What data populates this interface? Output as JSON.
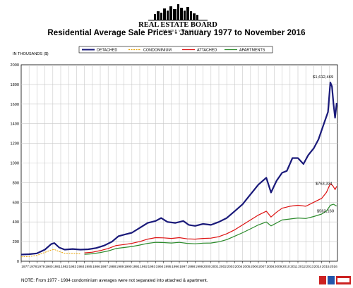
{
  "brand": {
    "name": "REAL ESTATE BOARD",
    "subtitle": "OF GREATER VANCOUVER"
  },
  "chart_data": {
    "type": "line",
    "title": "Residential Average Sale Prices  -  January 1977 to November 2016",
    "ylabel": "IN THOUSANDS ($)",
    "xlabel": "",
    "ylim": [
      0,
      2000
    ],
    "yticks": [
      0,
      200,
      400,
      600,
      800,
      1000,
      1200,
      1400,
      1600,
      1800,
      2000
    ],
    "xlim": [
      1977,
      2017
    ],
    "categories": [
      "1977",
      "1978",
      "1979",
      "1980",
      "1981",
      "1982",
      "1983",
      "1984",
      "1985",
      "1986",
      "1987",
      "1988",
      "1989",
      "1990",
      "1991",
      "1992",
      "1993",
      "1994",
      "1995",
      "1996",
      "1997",
      "1998",
      "1999",
      "2000",
      "2001",
      "2002",
      "2003",
      "2004",
      "2005",
      "2006",
      "2007",
      "2008",
      "2009",
      "2010",
      "2011",
      "2012",
      "2013",
      "2014",
      "2015",
      "2016"
    ],
    "grid": true,
    "legend_position": "top",
    "series": [
      {
        "name": "DETACHED",
        "color": "#1a1a7a",
        "style": "solid",
        "points": [
          [
            1977,
            68
          ],
          [
            1978,
            72
          ],
          [
            1979,
            80
          ],
          [
            1980,
            118
          ],
          [
            1980.8,
            175
          ],
          [
            1981.2,
            185
          ],
          [
            1981.8,
            140
          ],
          [
            1982.5,
            118
          ],
          [
            1983.5,
            125
          ],
          [
            1984.5,
            118
          ],
          [
            1985.5,
            122
          ],
          [
            1986.5,
            135
          ],
          [
            1987.5,
            160
          ],
          [
            1988.5,
            200
          ],
          [
            1989.3,
            255
          ],
          [
            1990,
            270
          ],
          [
            1991,
            290
          ],
          [
            1992,
            340
          ],
          [
            1993,
            390
          ],
          [
            1994,
            410
          ],
          [
            1994.7,
            440
          ],
          [
            1995.5,
            400
          ],
          [
            1996.5,
            390
          ],
          [
            1997.5,
            410
          ],
          [
            1998.2,
            370
          ],
          [
            1999,
            360
          ],
          [
            2000,
            380
          ],
          [
            2001,
            370
          ],
          [
            2002,
            400
          ],
          [
            2003,
            440
          ],
          [
            2004,
            510
          ],
          [
            2005,
            580
          ],
          [
            2006,
            680
          ],
          [
            2007,
            780
          ],
          [
            2008,
            850
          ],
          [
            2008.6,
            700
          ],
          [
            2009.3,
            820
          ],
          [
            2010,
            900
          ],
          [
            2010.6,
            920
          ],
          [
            2011.3,
            1050
          ],
          [
            2012,
            1050
          ],
          [
            2012.7,
            990
          ],
          [
            2013.3,
            1080
          ],
          [
            2014,
            1150
          ],
          [
            2014.6,
            1240
          ],
          [
            2015.2,
            1380
          ],
          [
            2015.8,
            1520
          ],
          [
            2016.1,
            1820
          ],
          [
            2016.3,
            1780
          ],
          [
            2016.5,
            1600
          ],
          [
            2016.7,
            1460
          ],
          [
            2016.9,
            1612
          ]
        ],
        "end_label": "$1,612,469"
      },
      {
        "name": "CONDOMINIUM",
        "color": "#e8a200",
        "style": "dashed",
        "points": [
          [
            1977,
            45
          ],
          [
            1978,
            48
          ],
          [
            1979,
            60
          ],
          [
            1980,
            90
          ],
          [
            1980.8,
            115
          ],
          [
            1981.2,
            120
          ],
          [
            1981.8,
            98
          ],
          [
            1982.5,
            82
          ],
          [
            1983.5,
            80
          ],
          [
            1984.5,
            75
          ]
        ]
      },
      {
        "name": "ATTACHED",
        "color": "#dd1111",
        "style": "solid",
        "points": [
          [
            1985,
            85
          ],
          [
            1986,
            92
          ],
          [
            1987,
            108
          ],
          [
            1988,
            130
          ],
          [
            1989,
            160
          ],
          [
            1990,
            170
          ],
          [
            1991,
            182
          ],
          [
            1992,
            200
          ],
          [
            1993,
            225
          ],
          [
            1994,
            240
          ],
          [
            1995,
            238
          ],
          [
            1996,
            232
          ],
          [
            1997,
            240
          ],
          [
            1998,
            228
          ],
          [
            1999,
            225
          ],
          [
            2000,
            232
          ],
          [
            2001,
            235
          ],
          [
            2002,
            250
          ],
          [
            2003,
            280
          ],
          [
            2004,
            320
          ],
          [
            2005,
            370
          ],
          [
            2006,
            420
          ],
          [
            2007,
            470
          ],
          [
            2008,
            510
          ],
          [
            2008.6,
            450
          ],
          [
            2009.3,
            500
          ],
          [
            2010,
            540
          ],
          [
            2011,
            560
          ],
          [
            2012,
            570
          ],
          [
            2013,
            560
          ],
          [
            2014,
            600
          ],
          [
            2015,
            640
          ],
          [
            2015.6,
            700
          ],
          [
            2016.1,
            790
          ],
          [
            2016.4,
            770
          ],
          [
            2016.7,
            730
          ],
          [
            2016.9,
            763
          ]
        ],
        "end_label": "$763,331"
      },
      {
        "name": "APARTMENTS",
        "color": "#2a8a2a",
        "style": "solid",
        "points": [
          [
            1985,
            70
          ],
          [
            1986,
            76
          ],
          [
            1987,
            88
          ],
          [
            1988,
            105
          ],
          [
            1989,
            130
          ],
          [
            1990,
            140
          ],
          [
            1991,
            150
          ],
          [
            1992,
            165
          ],
          [
            1993,
            182
          ],
          [
            1994,
            192
          ],
          [
            1995,
            190
          ],
          [
            1996,
            186
          ],
          [
            1997,
            192
          ],
          [
            1998,
            182
          ],
          [
            1999,
            178
          ],
          [
            2000,
            184
          ],
          [
            2001,
            186
          ],
          [
            2002,
            198
          ],
          [
            2003,
            220
          ],
          [
            2004,
            255
          ],
          [
            2005,
            290
          ],
          [
            2006,
            330
          ],
          [
            2007,
            370
          ],
          [
            2008,
            400
          ],
          [
            2008.6,
            360
          ],
          [
            2009.3,
            390
          ],
          [
            2010,
            420
          ],
          [
            2011,
            430
          ],
          [
            2012,
            440
          ],
          [
            2013,
            435
          ],
          [
            2014,
            455
          ],
          [
            2015,
            480
          ],
          [
            2015.6,
            510
          ],
          [
            2016.1,
            570
          ],
          [
            2016.5,
            580
          ],
          [
            2016.9,
            562
          ]
        ],
        "end_label": "$562,160"
      }
    ]
  },
  "footnote": "NOTE:  From 1977 - 1984 condominium averages were not separated into attached & apartment."
}
